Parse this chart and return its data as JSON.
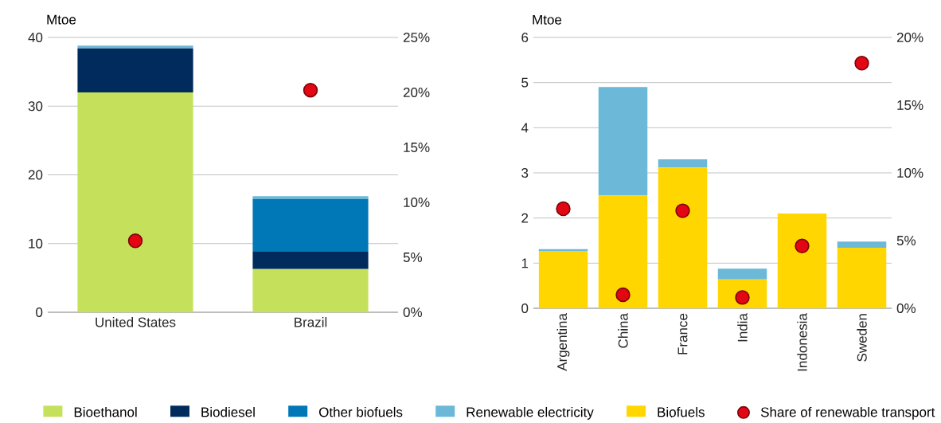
{
  "chart_data": [
    {
      "type": "bar",
      "stacked": true,
      "ylabel": "Mtoe",
      "categories": [
        "United States",
        "Brazil"
      ],
      "series": [
        {
          "name": "Bioethanol",
          "color": "#c5e15c",
          "values": [
            32.0,
            6.3
          ]
        },
        {
          "name": "Biodiesel",
          "color": "#002b5c",
          "values": [
            6.4,
            2.5
          ]
        },
        {
          "name": "Other biofuels",
          "color": "#0077b6",
          "values": [
            0,
            7.7
          ]
        },
        {
          "name": "Renewable electricity",
          "color": "#6cb8d8",
          "values": [
            0.4,
            0.4
          ]
        },
        {
          "type": "scatter",
          "axis": "y2",
          "color": "#e30613",
          "x": [
            "United States",
            "Brazil"
          ],
          "values": [
            6.5,
            20.2
          ]
        }
      ],
      "ylim": [
        0,
        40
      ],
      "yticks": [
        0,
        10,
        20,
        30,
        40
      ],
      "y2lim": [
        0,
        25
      ],
      "y2ticks": [
        {
          "value": 0,
          "label": "0%"
        },
        {
          "value": 5,
          "label": "5%"
        },
        {
          "value": 10,
          "label": "10%"
        },
        {
          "value": 15,
          "label": "15%"
        },
        {
          "value": 20,
          "label": "20%"
        },
        {
          "value": 25,
          "label": "25%"
        }
      ],
      "grid": "y",
      "legend": "bottom",
      "marker": "circle"
    },
    {
      "type": "bar",
      "stacked": true,
      "ylabel": "Mtoe",
      "categories": [
        "Argentina",
        "China",
        "France",
        "India",
        "Indonesia",
        "Sweden"
      ],
      "series": [
        {
          "name": "Biofuels",
          "color": "#ffd600",
          "values": [
            1.27,
            2.5,
            3.12,
            0.64,
            2.1,
            1.34
          ]
        },
        {
          "color": "#6cb8d8",
          "values": [
            0.04,
            2.4,
            0.18,
            0.24,
            0,
            0.14
          ]
        },
        {
          "name": "Share of renewable transport",
          "type": "scatter",
          "axis": "y2",
          "color": "#e30613",
          "x": [
            "Argentina",
            "China",
            "France",
            "India",
            "Indonesia",
            "Sweden"
          ],
          "values": [
            7.35,
            1.0,
            7.2,
            0.8,
            4.6,
            18.1
          ]
        }
      ],
      "ylim": [
        0,
        6
      ],
      "yticks": [
        0,
        1,
        2,
        3,
        4,
        5,
        6
      ],
      "y2lim": [
        0,
        20
      ],
      "y2ticks": [
        {
          "value": 0,
          "label": "0%"
        },
        {
          "value": 5,
          "label": "5%"
        },
        {
          "value": 10,
          "label": "10%"
        },
        {
          "value": 15,
          "label": "15%"
        },
        {
          "value": 20,
          "label": "20%"
        }
      ],
      "grid": "y",
      "legend": "bottom",
      "marker": "circle"
    }
  ]
}
